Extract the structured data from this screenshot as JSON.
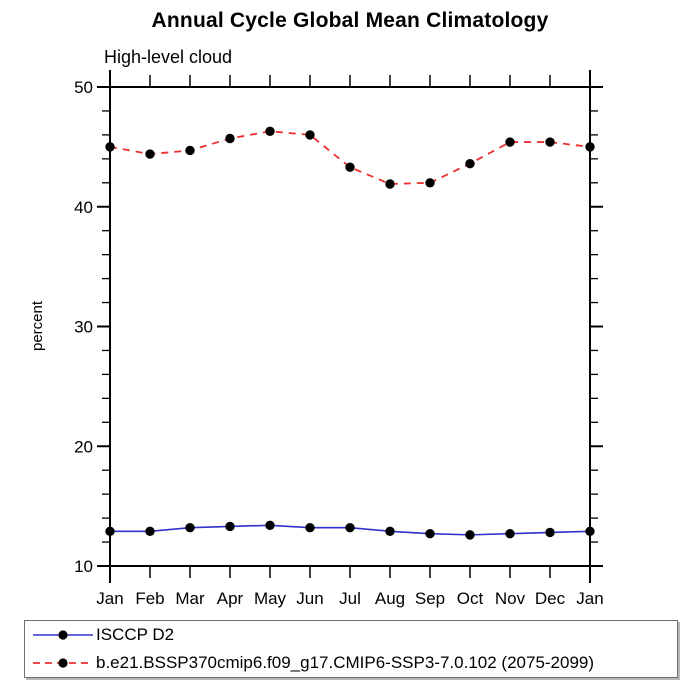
{
  "window": {
    "background": "#ffffff"
  },
  "chart_data": {
    "type": "line",
    "title": "Annual Cycle Global Mean Climatology",
    "subtitle": "High-level cloud",
    "ylabel": "percent",
    "xlabel": "",
    "categories": [
      "Jan",
      "Feb",
      "Mar",
      "Apr",
      "May",
      "Jun",
      "Jul",
      "Aug",
      "Sep",
      "Oct",
      "Nov",
      "Dec",
      "Jan"
    ],
    "ylim": [
      10,
      50
    ],
    "yticks_major": [
      10,
      20,
      30,
      40,
      50
    ],
    "ytick_minor_step": 2,
    "grid": false,
    "legend_position": "bottom",
    "axis_color": "#000000",
    "marker_color": "#000000",
    "series": [
      {
        "name": "ISCCP D2",
        "color": "#3232cd",
        "dash": "solid",
        "marker": "circle",
        "values": [
          12.9,
          12.9,
          13.2,
          13.3,
          13.4,
          13.2,
          13.2,
          12.9,
          12.7,
          12.6,
          12.7,
          12.8,
          12.9
        ]
      },
      {
        "name": "b.e21.BSSP370cmip6.f09_g17.CMIP6-SSP3-7.0.102 (2075-2099)",
        "color": "#ed2f2f",
        "dash": "dashed",
        "marker": "circle",
        "values": [
          45.0,
          44.4,
          44.7,
          45.7,
          46.3,
          46.0,
          43.3,
          41.9,
          42.0,
          43.6,
          45.4,
          45.4,
          45.0
        ]
      }
    ]
  }
}
